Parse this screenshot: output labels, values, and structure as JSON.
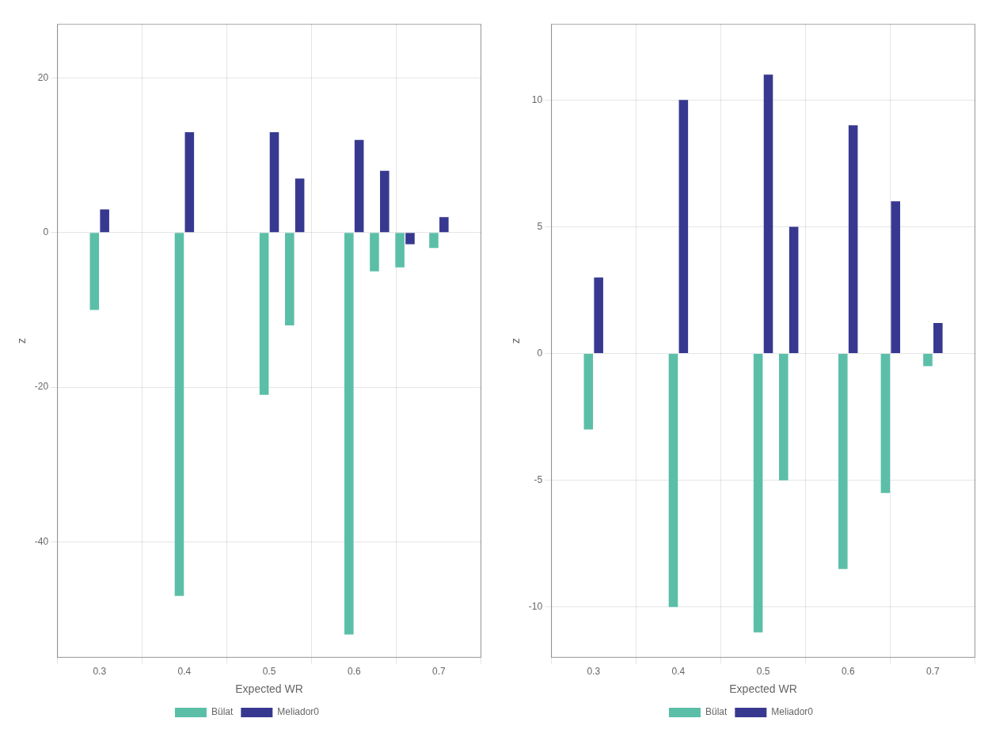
{
  "chart_data": [
    {
      "type": "bar",
      "xlabel": "Expected WR",
      "ylabel": "z",
      "x": [
        0.3,
        0.4,
        0.5,
        0.53,
        0.6,
        0.63,
        0.66,
        0.7
      ],
      "series": [
        {
          "name": "Bülat",
          "color": "#5BBFA8",
          "values": [
            -10,
            -47,
            -21,
            -12,
            -52,
            -5,
            -4.5,
            -2
          ]
        },
        {
          "name": "Meliador0",
          "color": "#373990",
          "values": [
            3,
            13,
            13,
            7,
            12,
            8,
            -1.5,
            2
          ]
        }
      ],
      "xlim": [
        0.25,
        0.75
      ],
      "xticks": [
        0.3,
        0.4,
        0.5,
        0.6,
        0.7
      ],
      "ylim": [
        -55,
        27
      ],
      "yticks": [
        20,
        0,
        -20,
        -40
      ],
      "grid": true,
      "legend": "bottom"
    },
    {
      "type": "bar",
      "xlabel": "Expected WR",
      "ylabel": "z",
      "x": [
        0.3,
        0.4,
        0.5,
        0.53,
        0.6,
        0.65,
        0.7
      ],
      "series": [
        {
          "name": "Bülat",
          "color": "#5BBFA8",
          "values": [
            -3,
            -10,
            -11,
            -5,
            -8.5,
            -5.5,
            -0.5
          ]
        },
        {
          "name": "Meliador0",
          "color": "#373990",
          "values": [
            3,
            10,
            11,
            5,
            9,
            6,
            1.2
          ]
        }
      ],
      "xlim": [
        0.25,
        0.75
      ],
      "xticks": [
        0.3,
        0.4,
        0.5,
        0.6,
        0.7
      ],
      "ylim": [
        -12,
        13
      ],
      "yticks": [
        10,
        5,
        0,
        -5,
        -10
      ],
      "grid": true,
      "legend": "bottom"
    }
  ]
}
